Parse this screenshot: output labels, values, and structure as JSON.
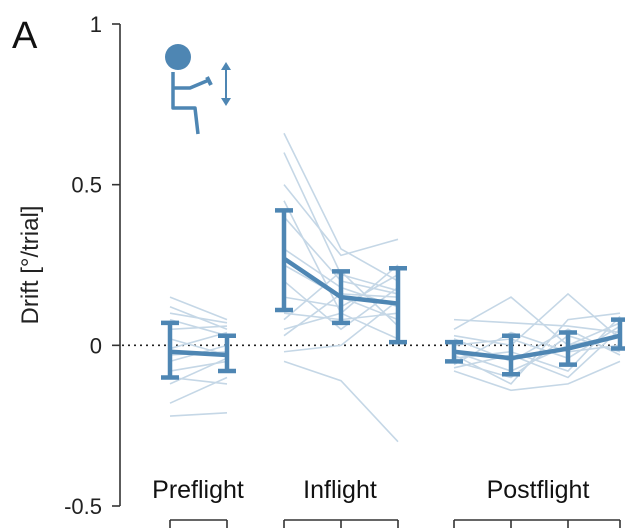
{
  "panel_letter": "A",
  "colors": {
    "mean": "#4e86b3",
    "subject": "#c5d7e6",
    "axis": "#333333"
  },
  "chart_data": {
    "type": "line",
    "ylabel": "Drift [°/trial]",
    "ylim": [
      -0.5,
      1
    ],
    "yticks": [
      {
        "value": 1,
        "label": "1"
      },
      {
        "value": 0.5,
        "label": "0.5"
      },
      {
        "value": 0,
        "label": "0"
      },
      {
        "value": -0.5,
        "label": "-0.5"
      }
    ],
    "reference_line": 0,
    "icon": "seated-astronaut-vertical-motion-icon",
    "groups": [
      {
        "name": "Preflight",
        "means": [
          -0.02,
          -0.03
        ],
        "errors": [
          [
            -0.1,
            0.07
          ],
          [
            -0.08,
            0.03
          ]
        ],
        "subjects": [
          [
            0.15,
            0.08
          ],
          [
            0.12,
            0.05
          ],
          [
            0.1,
            0.07
          ],
          [
            0.08,
            0.03
          ],
          [
            0.05,
            0.06
          ],
          [
            0.02,
            -0.03
          ],
          [
            -0.01,
            0.04
          ],
          [
            -0.03,
            -0.02
          ],
          [
            -0.05,
            0.0
          ],
          [
            -0.08,
            -0.05
          ],
          [
            -0.1,
            -0.12
          ],
          [
            -0.12,
            -0.04
          ],
          [
            -0.18,
            -0.1
          ],
          [
            -0.22,
            -0.21
          ]
        ]
      },
      {
        "name": "Inflight",
        "means": [
          0.27,
          0.15,
          0.13
        ],
        "errors": [
          [
            0.11,
            0.42
          ],
          [
            0.07,
            0.23
          ],
          [
            0.01,
            0.24
          ]
        ],
        "subjects": [
          [
            0.66,
            0.3,
            0.2
          ],
          [
            0.6,
            0.22,
            0.17
          ],
          [
            0.5,
            0.28,
            0.33
          ],
          [
            0.45,
            0.1,
            0.25
          ],
          [
            0.4,
            0.2,
            0.16
          ],
          [
            0.3,
            0.18,
            0.12
          ],
          [
            0.25,
            0.15,
            0.08
          ],
          [
            0.2,
            0.05,
            0.18
          ],
          [
            0.15,
            0.12,
            0.22
          ],
          [
            0.1,
            0.08,
            0.1
          ],
          [
            0.05,
            0.1,
            0.02
          ],
          [
            -0.02,
            0.0,
            0.14
          ],
          [
            -0.05,
            -0.11,
            -0.3
          ],
          [
            0.03,
            0.16,
            0.15
          ],
          [
            0.08,
            0.23,
            0.06
          ]
        ]
      },
      {
        "name": "Postflight",
        "means": [
          -0.02,
          -0.04,
          -0.01,
          0.03
        ],
        "errors": [
          [
            -0.05,
            0.01
          ],
          [
            -0.09,
            0.03
          ],
          [
            -0.06,
            0.04
          ],
          [
            -0.01,
            0.08
          ]
        ],
        "subjects": [
          [
            0.08,
            0.07,
            0.06,
            0.04
          ],
          [
            0.05,
            0.15,
            0.0,
            0.07
          ],
          [
            0.03,
            0.0,
            0.16,
            0.02
          ],
          [
            0.02,
            -0.05,
            0.05,
            -0.03
          ],
          [
            0.0,
            0.02,
            -0.04,
            0.06
          ],
          [
            -0.02,
            -0.08,
            0.0,
            0.03
          ],
          [
            -0.04,
            -0.02,
            -0.08,
            0.09
          ],
          [
            -0.05,
            -0.1,
            0.03,
            -0.02
          ],
          [
            -0.07,
            -0.03,
            -0.1,
            0.05
          ],
          [
            -0.08,
            -0.14,
            -0.12,
            -0.05
          ],
          [
            -0.06,
            0.04,
            -0.02,
            0.0
          ],
          [
            -0.03,
            -0.12,
            0.08,
            0.1
          ]
        ]
      }
    ]
  }
}
